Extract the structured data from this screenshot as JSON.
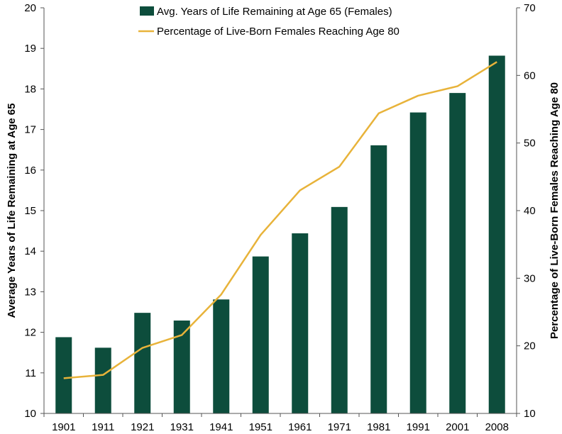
{
  "chart_data": {
    "type": "bar",
    "categories": [
      "1901",
      "1911",
      "1921",
      "1931",
      "1941",
      "1951",
      "1961",
      "1971",
      "1981",
      "1991",
      "2001",
      "2008"
    ],
    "series": [
      {
        "name": "Avg. Years of Life Remaining at Age 65 (Females)",
        "type": "bar",
        "axis": "left",
        "color": "#0d4d3c",
        "values": [
          11.88,
          11.62,
          12.48,
          12.29,
          12.81,
          13.87,
          14.44,
          15.09,
          16.61,
          17.42,
          17.9,
          18.82
        ]
      },
      {
        "name": "Percentage of Live-Born Females Reaching Age 80",
        "type": "line",
        "axis": "right",
        "color": "#e8b33a",
        "values": [
          15.2,
          15.7,
          19.7,
          21.6,
          27.6,
          36.4,
          43.0,
          46.5,
          54.4,
          57.0,
          58.4,
          62.0
        ]
      }
    ],
    "ylabel": "Average Years of Life Remaining at Age 65",
    "y2label": "Percentage of Live-Born Females Reaching Age 80",
    "ylim": [
      10,
      20
    ],
    "y2lim": [
      10,
      70
    ],
    "yticks": [
      "10",
      "11",
      "12",
      "13",
      "14",
      "15",
      "16",
      "17",
      "18",
      "19",
      "20"
    ],
    "y2ticks": [
      "10",
      "20",
      "30",
      "40",
      "50",
      "60",
      "70"
    ],
    "grid": false,
    "legend_position": "top-center"
  }
}
